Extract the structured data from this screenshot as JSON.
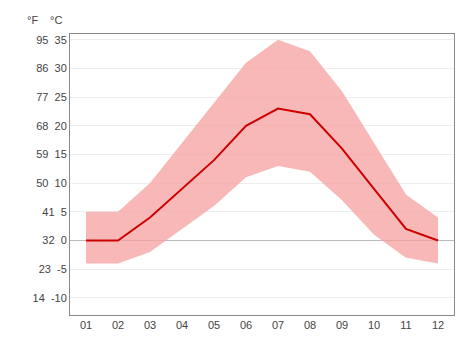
{
  "chart_data": {
    "type": "line",
    "x": [
      1,
      2,
      3,
      4,
      5,
      6,
      7,
      8,
      9,
      10,
      11,
      12
    ],
    "series": [
      {
        "type": "range",
        "color": "#f5a0a0",
        "low": [
          -4,
          -4,
          -2,
          2,
          6,
          11,
          13,
          12,
          7,
          1,
          -3,
          -4
        ],
        "high": [
          5,
          5,
          10,
          17,
          24,
          31,
          35,
          33,
          26,
          17,
          8,
          4
        ]
      },
      {
        "type": "line",
        "color": "#cc0000",
        "values": [
          0,
          0,
          4,
          9,
          14,
          20,
          23,
          22,
          16,
          9,
          2,
          0
        ]
      }
    ],
    "xlim": [
      0.5,
      12.5
    ],
    "xticks": [
      {
        "value": 1,
        "label": "01"
      },
      {
        "value": 2,
        "label": "02"
      },
      {
        "value": 3,
        "label": "03"
      },
      {
        "value": 4,
        "label": "04"
      },
      {
        "value": 5,
        "label": "05"
      },
      {
        "value": 6,
        "label": "06"
      },
      {
        "value": 7,
        "label": "07"
      },
      {
        "value": 8,
        "label": "08"
      },
      {
        "value": 9,
        "label": "09"
      },
      {
        "value": 10,
        "label": "10"
      },
      {
        "value": 11,
        "label": "11"
      },
      {
        "value": 12,
        "label": "12"
      }
    ],
    "ylim": [
      -13,
      36
    ],
    "yticks": [
      {
        "value": -10,
        "label": "14  -10"
      },
      {
        "value": -5,
        "label": "23  -5"
      },
      {
        "value": 0,
        "label": "32  0"
      },
      {
        "value": 5,
        "label": "41  5"
      },
      {
        "value": 10,
        "label": "50  10"
      },
      {
        "value": 15,
        "label": "59  15"
      },
      {
        "value": 20,
        "label": "68  20"
      },
      {
        "value": 25,
        "label": "77  25"
      },
      {
        "value": 30,
        "label": "86  30"
      },
      {
        "value": 35,
        "label": "95  35"
      }
    ],
    "grid": "y",
    "annotations": [
      "°F",
      "°C"
    ]
  }
}
